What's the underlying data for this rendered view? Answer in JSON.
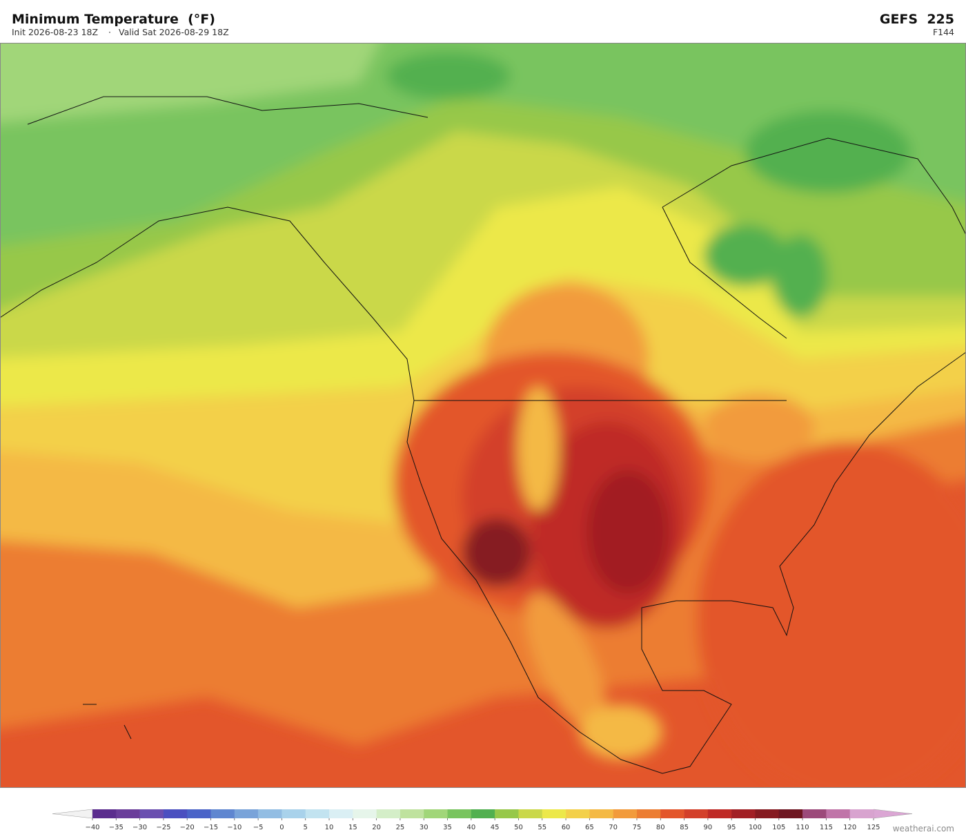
{
  "header": {
    "title": "Minimum Temperature  (°F)",
    "init": "Init 2026-08-23 18Z",
    "separator": "·",
    "valid": "Valid Sat 2026-08-29 18Z",
    "model": "GEFS  225",
    "forecast_hour": "F144"
  },
  "colorbar": {
    "ticks": [
      {
        "value": -40,
        "label": "−40"
      },
      {
        "value": -35,
        "label": "−35"
      },
      {
        "value": -30,
        "label": "−30"
      },
      {
        "value": -25,
        "label": "−25"
      },
      {
        "value": -20,
        "label": "−20"
      },
      {
        "value": -15,
        "label": "−15"
      },
      {
        "value": -10,
        "label": "−10"
      },
      {
        "value": -5,
        "label": "−5"
      },
      0,
      5,
      10,
      15,
      20,
      25,
      30,
      35,
      40,
      45,
      50,
      55,
      60,
      65,
      70,
      75,
      80,
      85,
      90,
      95,
      100,
      105,
      110,
      115,
      120,
      125
    ],
    "colors": [
      "#5b2d8e",
      "#6a3d9a",
      "#6a4fb0",
      "#4b50c0",
      "#4b64c8",
      "#5f86d0",
      "#79a3d9",
      "#92bde3",
      "#a9d2eb",
      "#c2e3f0",
      "#daeff4",
      "#e6f5ea",
      "#d4eec8",
      "#bfe29e",
      "#a1d679",
      "#79c45e",
      "#52b050",
      "#97c84a",
      "#cad84a",
      "#ece84a",
      "#f3d04a",
      "#f4b944",
      "#f29b3c",
      "#ec7d32",
      "#e3562b",
      "#d3402a",
      "#bf2a26",
      "#a21f24",
      "#861a20",
      "#6e1621",
      "#9c4a7a",
      "#c074a8",
      "#d8a3cf"
    ],
    "under_color": "#f2f2f2",
    "over_color": "#dba6d4"
  },
  "footer": {
    "watermark": "weatherai.com"
  }
}
